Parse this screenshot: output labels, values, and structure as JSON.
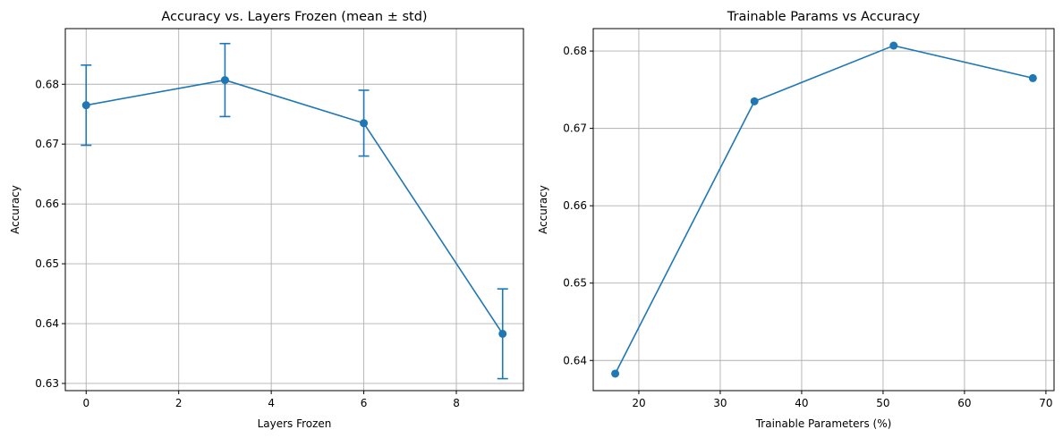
{
  "chart_data": [
    {
      "type": "line",
      "title": "Accuracy vs. Layers Frozen (mean ± std)",
      "xlabel": "Layers Frozen",
      "ylabel": "Accuracy",
      "xlim": [
        -0.45,
        9.45
      ],
      "ylim": [
        0.6288,
        0.6893
      ],
      "xticks": [
        0,
        2,
        4,
        6,
        8
      ],
      "xtick_labels": [
        "0",
        "2",
        "4",
        "6",
        "8"
      ],
      "yticks": [
        0.63,
        0.64,
        0.65,
        0.66,
        0.67,
        0.68
      ],
      "ytick_labels": [
        "0.63",
        "0.64",
        "0.65",
        "0.66",
        "0.67",
        "0.68"
      ],
      "grid": true,
      "error_bars": true,
      "color": "#1f77b4",
      "series": [
        {
          "x": [
            0,
            3,
            6,
            9
          ],
          "y": [
            0.6765,
            0.6807,
            0.6735,
            0.6383
          ],
          "yerr": [
            0.0067,
            0.0061,
            0.0055,
            0.0075
          ]
        }
      ]
    },
    {
      "type": "line",
      "title": "Trainable Params vs Accuracy",
      "xlabel": "Trainable Parameters (%)",
      "ylabel": "Accuracy",
      "xlim": [
        14.4,
        71.0
      ],
      "ylim": [
        0.6361,
        0.6829
      ],
      "xticks": [
        20,
        30,
        40,
        50,
        60,
        70
      ],
      "xtick_labels": [
        "20",
        "30",
        "40",
        "50",
        "60",
        "70"
      ],
      "yticks": [
        0.64,
        0.65,
        0.66,
        0.67,
        0.68
      ],
      "ytick_labels": [
        "0.64",
        "0.65",
        "0.66",
        "0.67",
        "0.68"
      ],
      "grid": true,
      "error_bars": false,
      "color": "#1f77b4",
      "series": [
        {
          "x": [
            17.1,
            34.2,
            51.3,
            68.4
          ],
          "y": [
            0.6383,
            0.6735,
            0.6807,
            0.6765
          ]
        }
      ]
    }
  ]
}
